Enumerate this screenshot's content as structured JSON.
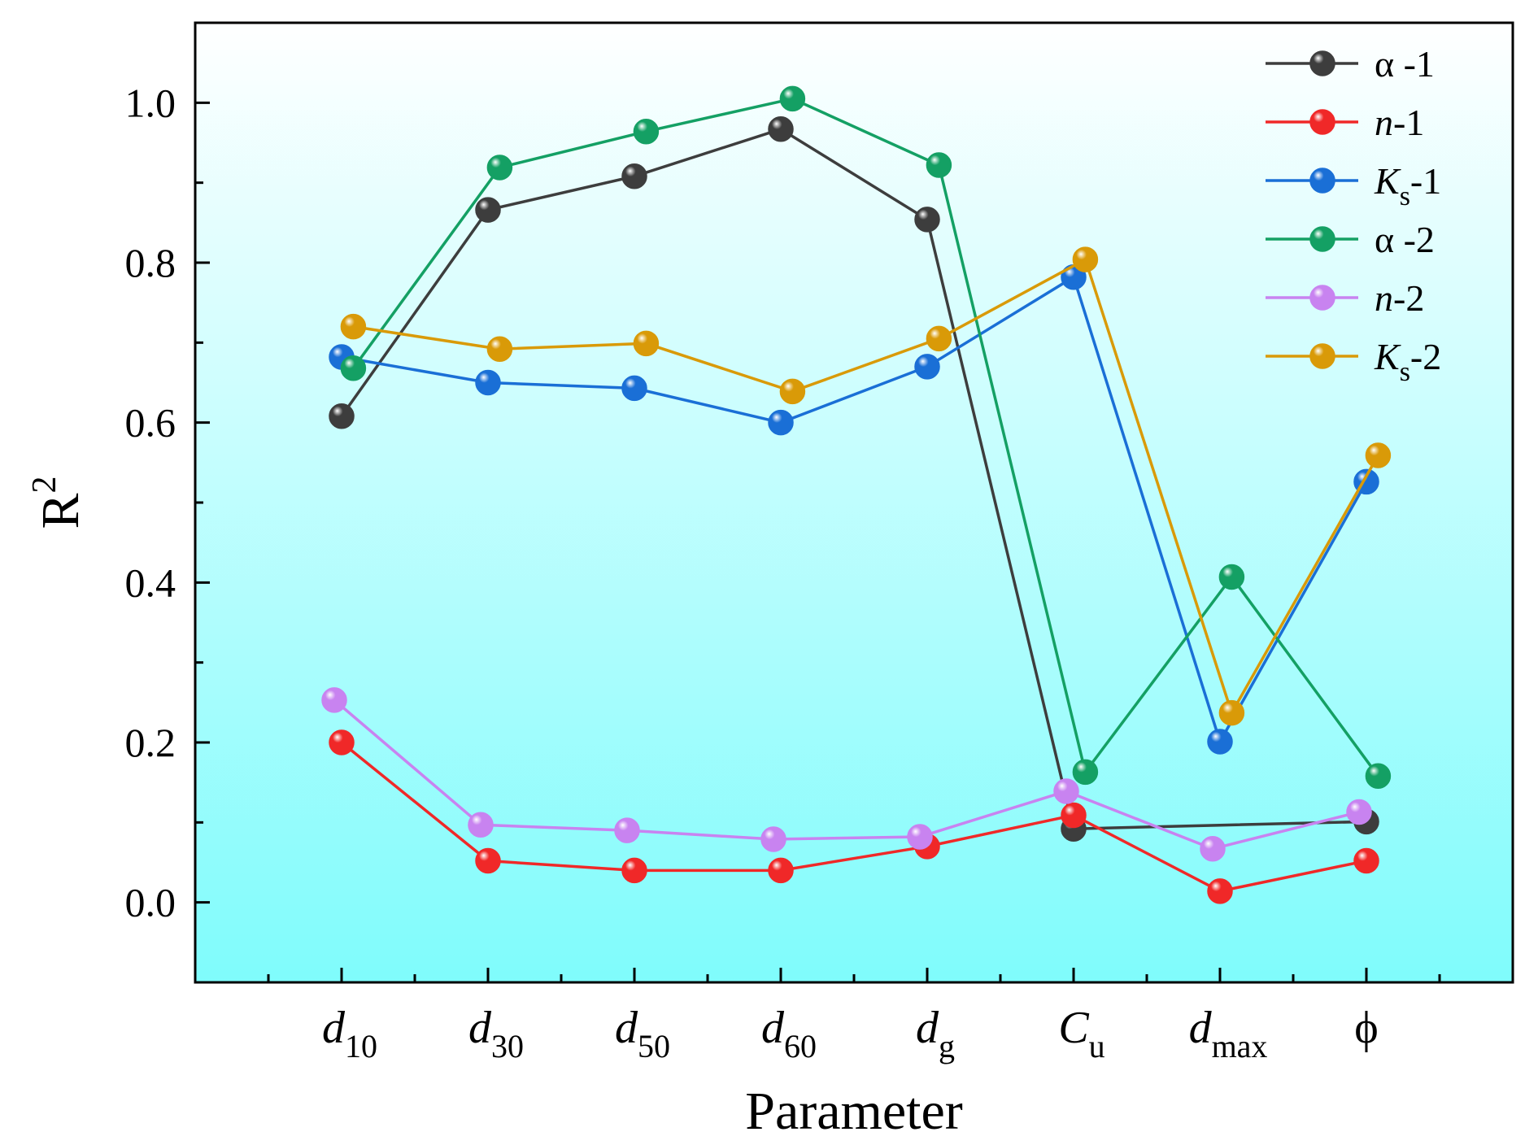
{
  "chart_data": {
    "type": "line",
    "xlabel": "Parameter",
    "ylabel": {
      "base": "R",
      "sup": "2"
    },
    "ylim": [
      -0.1,
      1.1
    ],
    "yticks": [
      "0.0",
      "0.2",
      "0.4",
      "0.6",
      "0.8",
      "1.0"
    ],
    "categories": [
      {
        "main": "d",
        "sub": "10",
        "italic": true
      },
      {
        "main": "d",
        "sub": "30",
        "italic": true
      },
      {
        "main": "d",
        "sub": "50",
        "italic": true
      },
      {
        "main": "d",
        "sub": "60",
        "italic": true
      },
      {
        "main": "d",
        "sub": "g",
        "italic": true
      },
      {
        "main": "C",
        "sub": "u",
        "italic": true
      },
      {
        "main": "d",
        "sub": "max",
        "italic": true
      },
      {
        "main": "ϕ",
        "sub": "",
        "italic": false
      }
    ],
    "legend_position": "top-right",
    "background_gradient": [
      "#ffffff",
      "#7ffcfc"
    ],
    "series": [
      {
        "name": "α -1",
        "legend": {
          "main": "α -1",
          "sub": "",
          "tail": "",
          "italic": false
        },
        "color": "#3d3d3d",
        "offset": 0.0,
        "values": [
          0.608,
          0.866,
          0.908,
          0.967,
          0.854,
          0.092,
          null,
          0.101
        ]
      },
      {
        "name": "n-1",
        "legend": {
          "main": "n",
          "sub": "",
          "tail": "-1",
          "italic": true
        },
        "color": "#f02828",
        "offset": 0.0,
        "values": [
          0.2,
          0.052,
          0.04,
          0.04,
          0.07,
          0.109,
          0.014,
          0.052
        ]
      },
      {
        "name": "Ks-1",
        "legend": {
          "main": "K",
          "sub": "s",
          "tail": "-1",
          "italic": true
        },
        "color": "#1a6fd6",
        "offset": 0.0,
        "values": [
          0.682,
          0.65,
          0.643,
          0.6,
          0.67,
          0.782,
          0.201,
          0.526
        ]
      },
      {
        "name": "α -2",
        "legend": {
          "main": "α -2",
          "sub": "",
          "tail": "",
          "italic": false
        },
        "color": "#14a064",
        "offset": 0.08,
        "values": [
          0.668,
          0.919,
          0.964,
          1.005,
          0.922,
          0.163,
          0.407,
          0.158
        ]
      },
      {
        "name": "n-2",
        "legend": {
          "main": "n",
          "sub": "",
          "tail": "-2",
          "italic": true
        },
        "color": "#c883f0",
        "offset": -0.05,
        "values": [
          0.253,
          0.097,
          0.09,
          0.079,
          0.082,
          0.139,
          0.067,
          0.113
        ]
      },
      {
        "name": "Ks-2",
        "legend": {
          "main": "K",
          "sub": "s",
          "tail": "-2",
          "italic": true
        },
        "color": "#d99a08",
        "offset": 0.08,
        "values": [
          0.72,
          0.692,
          0.699,
          0.639,
          0.705,
          0.804,
          0.237,
          0.559
        ]
      }
    ]
  }
}
